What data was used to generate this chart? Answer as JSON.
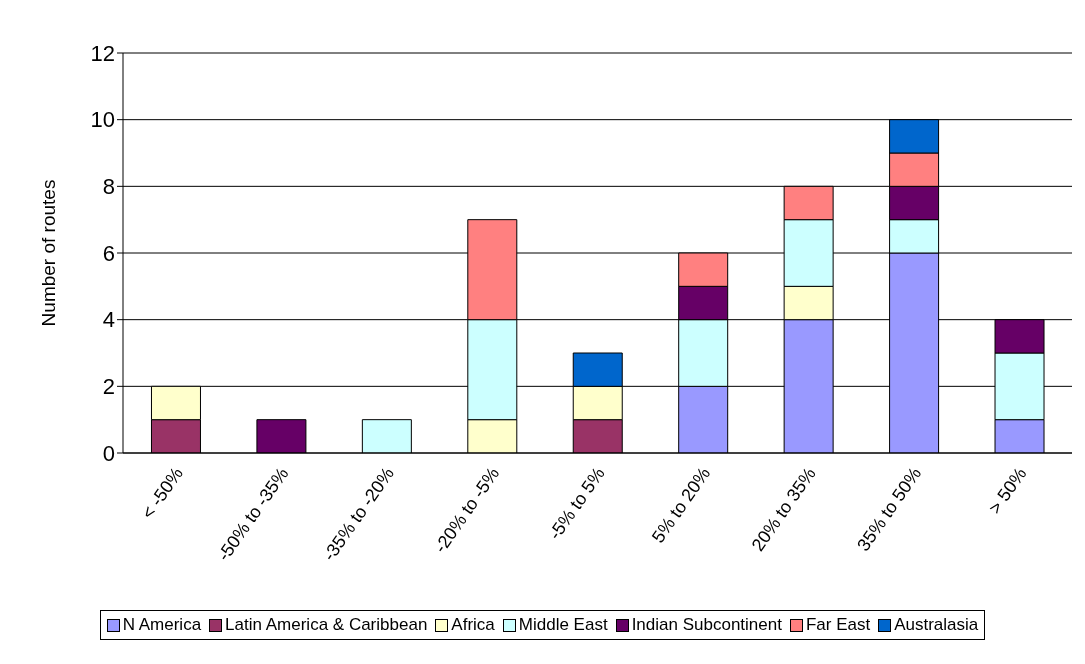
{
  "chart_data": {
    "type": "bar",
    "stacked": true,
    "ylabel": "Number of routes",
    "categories": [
      "< -50%",
      "-50% to -35%",
      "-35% to -20%",
      "-20% to -5%",
      "-5% to 5%",
      "5% to 20%",
      "20% to 35%",
      "35% to 50%",
      "> 50%"
    ],
    "series": [
      {
        "name": "N America",
        "color": "#9999ff",
        "values": [
          0,
          0,
          0,
          0,
          0,
          2,
          4,
          6,
          1
        ]
      },
      {
        "name": "Latin America & Caribbean",
        "color": "#993366",
        "values": [
          1,
          0,
          0,
          0,
          1,
          0,
          0,
          0,
          0
        ]
      },
      {
        "name": "Africa",
        "color": "#ffffcc",
        "values": [
          1,
          0,
          0,
          1,
          1,
          0,
          1,
          0,
          0
        ]
      },
      {
        "name": "Middle East",
        "color": "#ccffff",
        "values": [
          0,
          0,
          1,
          3,
          0,
          2,
          2,
          1,
          2
        ]
      },
      {
        "name": "Indian Subcontinent",
        "color": "#660066",
        "values": [
          0,
          1,
          0,
          0,
          0,
          1,
          0,
          1,
          1
        ]
      },
      {
        "name": "Far East",
        "color": "#ff8080",
        "values": [
          0,
          0,
          0,
          3,
          0,
          1,
          1,
          1,
          0
        ]
      },
      {
        "name": "Australasia",
        "color": "#0066cc",
        "values": [
          0,
          0,
          0,
          0,
          1,
          0,
          0,
          1,
          0
        ]
      }
    ],
    "ylim": [
      0,
      12
    ],
    "yticks": [
      0,
      2,
      4,
      6,
      8,
      10,
      12
    ],
    "grid": "y",
    "legend": "bottom"
  }
}
